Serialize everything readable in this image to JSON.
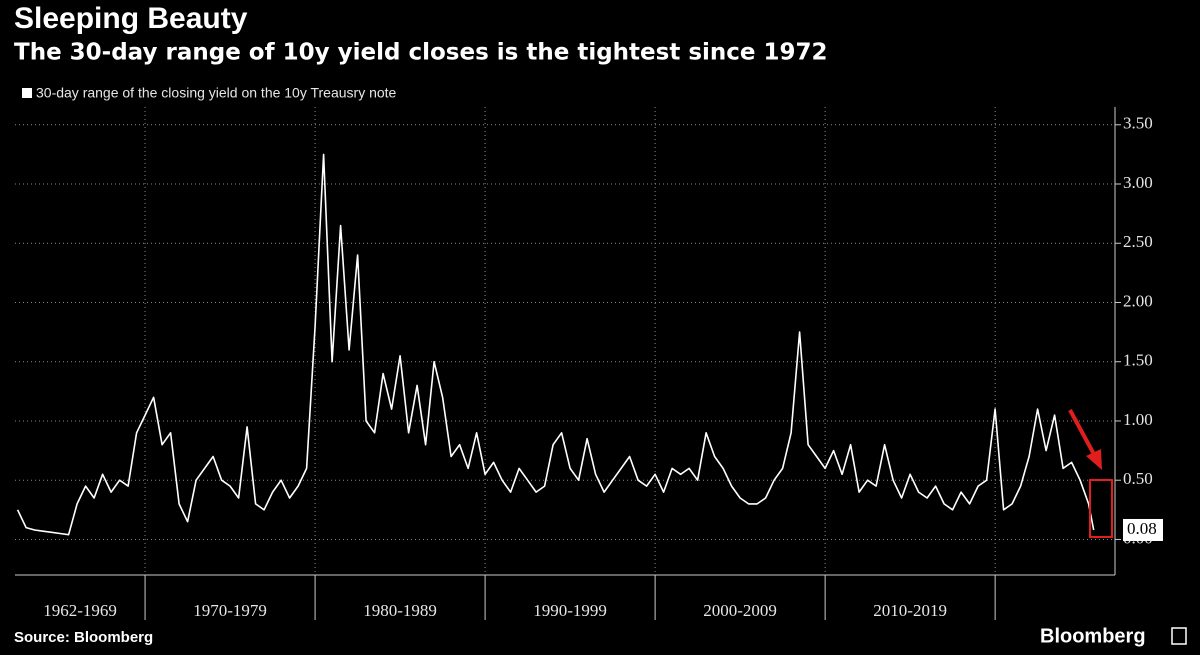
{
  "chart_data": {
    "type": "line",
    "title": "Sleeping Beauty",
    "subtitle": "The 30-day range of 10y yield closes is the tightest since 1972",
    "source": "Source: Bloomberg",
    "brand": "Bloomberg",
    "x": [
      1962.5,
      1963,
      1963.5,
      1964,
      1964.5,
      1965,
      1965.5,
      1966,
      1966.5,
      1967,
      1967.5,
      1968,
      1968.5,
      1969,
      1969.5,
      1970,
      1970.5,
      1971,
      1971.5,
      1972,
      1972.5,
      1973,
      1973.5,
      1974,
      1974.5,
      1975,
      1975.5,
      1976,
      1976.5,
      1977,
      1977.5,
      1978,
      1978.5,
      1979,
      1979.5,
      1980,
      1980.5,
      1981,
      1981.5,
      1982,
      1982.5,
      1983,
      1983.5,
      1984,
      1984.5,
      1985,
      1985.5,
      1986,
      1986.5,
      1987,
      1987.5,
      1988,
      1988.5,
      1989,
      1989.5,
      1990,
      1990.5,
      1991,
      1991.5,
      1992,
      1992.5,
      1993,
      1993.5,
      1994,
      1994.5,
      1995,
      1995.5,
      1996,
      1996.5,
      1997,
      1997.5,
      1998,
      1998.5,
      1999,
      1999.5,
      2000,
      2000.5,
      2001,
      2001.5,
      2002,
      2002.5,
      2003,
      2003.5,
      2004,
      2004.5,
      2005,
      2005.5,
      2006,
      2006.5,
      2007,
      2007.5,
      2008,
      2008.5,
      2009,
      2009.5,
      2010,
      2010.5,
      2011,
      2011.5,
      2012,
      2012.5,
      2013,
      2013.5,
      2014,
      2014.5,
      2015,
      2015.5,
      2016,
      2016.5,
      2017,
      2017.5,
      2018,
      2018.5,
      2019,
      2019.5,
      2020,
      2020.5,
      2021,
      2021.5,
      2022,
      2022.5,
      2023,
      2023.5,
      2024,
      2024.5,
      2025,
      2025.5,
      2025.8
    ],
    "series": [
      {
        "name": "30-day range of the closing yield on the 10y Treausry note",
        "color": "#ffffff",
        "values": [
          0.25,
          0.1,
          0.08,
          0.07,
          0.06,
          0.05,
          0.04,
          0.3,
          0.45,
          0.35,
          0.55,
          0.4,
          0.5,
          0.45,
          0.9,
          1.05,
          1.2,
          0.8,
          0.9,
          0.3,
          0.15,
          0.5,
          0.6,
          0.7,
          0.5,
          0.45,
          0.35,
          0.95,
          0.3,
          0.25,
          0.4,
          0.5,
          0.35,
          0.45,
          0.6,
          1.8,
          3.25,
          1.5,
          2.65,
          1.6,
          2.4,
          1.0,
          0.9,
          1.4,
          1.1,
          1.55,
          0.9,
          1.3,
          0.8,
          1.5,
          1.2,
          0.7,
          0.8,
          0.6,
          0.9,
          0.55,
          0.65,
          0.5,
          0.4,
          0.6,
          0.5,
          0.4,
          0.45,
          0.8,
          0.9,
          0.6,
          0.5,
          0.85,
          0.55,
          0.4,
          0.5,
          0.6,
          0.7,
          0.5,
          0.45,
          0.55,
          0.4,
          0.6,
          0.55,
          0.6,
          0.5,
          0.9,
          0.7,
          0.6,
          0.45,
          0.35,
          0.3,
          0.3,
          0.35,
          0.5,
          0.6,
          0.9,
          1.75,
          0.8,
          0.7,
          0.6,
          0.75,
          0.55,
          0.8,
          0.4,
          0.5,
          0.45,
          0.8,
          0.5,
          0.35,
          0.55,
          0.4,
          0.35,
          0.45,
          0.3,
          0.25,
          0.4,
          0.3,
          0.45,
          0.5,
          1.1,
          0.25,
          0.3,
          0.45,
          0.7,
          1.1,
          0.75,
          1.05,
          0.6,
          0.65,
          0.5,
          0.3,
          0.08
        ]
      }
    ],
    "xlim": [
      1962.35,
      2027.05
    ],
    "xticks": [
      1970,
      1980,
      1990,
      2000,
      2010,
      2020
    ],
    "period_labels": [
      "1962-1969",
      "1970-1979",
      "1980-1989",
      "1990-1999",
      "2000-2009",
      "2010-2019"
    ],
    "ylim": [
      -0.3,
      3.65
    ],
    "yticks": [
      {
        "value": 0,
        "label": "0.00"
      },
      {
        "value": 0.5,
        "label": "0.50"
      },
      {
        "value": 1,
        "label": "1.00"
      },
      {
        "value": 1.5,
        "label": "1.50"
      },
      {
        "value": 2,
        "label": "2.00"
      },
      {
        "value": 2.5,
        "label": "2.50"
      },
      {
        "value": 3,
        "label": "3.00"
      },
      {
        "value": 3.5,
        "label": "3.50"
      }
    ],
    "grid": true
  }
}
